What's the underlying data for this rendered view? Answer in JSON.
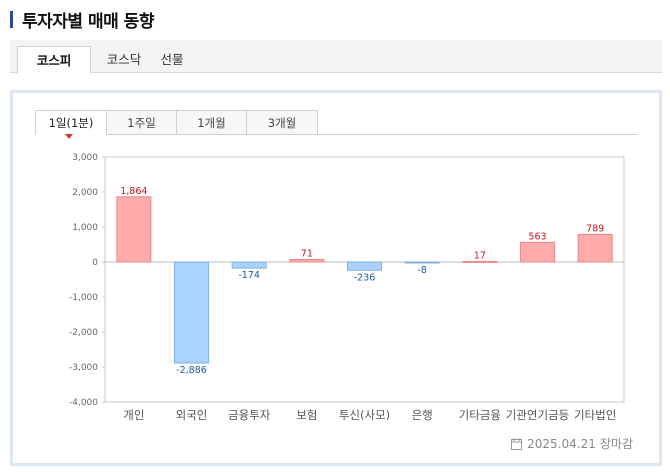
{
  "header": {
    "title": "투자자별 매매 동향"
  },
  "market_tabs": [
    {
      "label": "코스피",
      "active": true
    },
    {
      "label": "코스닥",
      "active": false
    },
    {
      "label": "선물",
      "active": false
    }
  ],
  "period_tabs": [
    {
      "label": "1일(1분)",
      "active": true
    },
    {
      "label": "1주일",
      "active": false
    },
    {
      "label": "1개월",
      "active": false
    },
    {
      "label": "3개월",
      "active": false
    }
  ],
  "footer": {
    "date": "2025.04.21",
    "status": "장마감"
  },
  "colors": {
    "positive_fill": "#ffabab",
    "positive_stroke": "#e88888",
    "positive_label": "#c8141e",
    "negative_fill": "#aad2ff",
    "negative_stroke": "#7fb0e6",
    "negative_label": "#1e5aa8"
  },
  "chart_data": {
    "type": "bar",
    "title": "",
    "xlabel": "",
    "ylabel": "",
    "ylim": [
      -4000,
      3000
    ],
    "yticks": [
      3000,
      2000,
      1000,
      0,
      -1000,
      -2000,
      -3000,
      -4000
    ],
    "ytick_labels": [
      "3,000",
      "2,000",
      "1,000",
      "0",
      "-1,000",
      "-2,000",
      "-3,000",
      "-4,000"
    ],
    "categories": [
      "개인",
      "외국인",
      "금융투자",
      "보험",
      "투신(사모)",
      "은행",
      "기타금융",
      "기관연기금등",
      "기타법인"
    ],
    "values": [
      1864,
      -2886,
      -174,
      71,
      -236,
      -8,
      17,
      563,
      789
    ],
    "value_labels": [
      "1,864",
      "-2,886",
      "-174",
      "71",
      "-236",
      "-8",
      "17",
      "563",
      "789"
    ],
    "grid": false,
    "legend": "none"
  }
}
